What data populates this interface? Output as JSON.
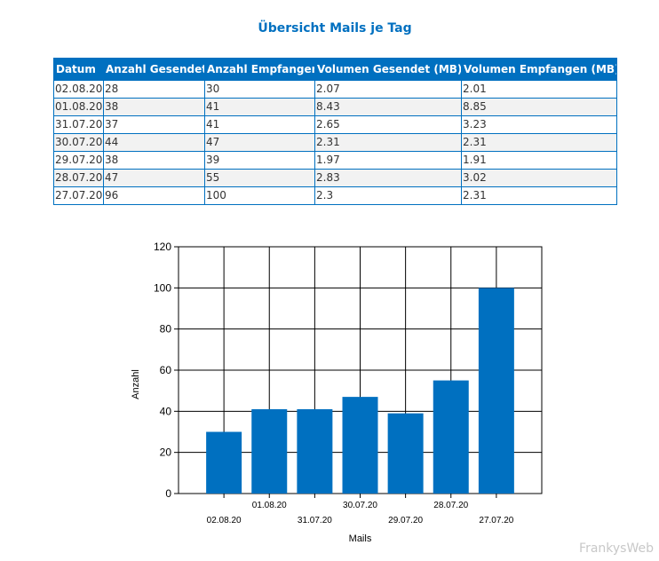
{
  "report": {
    "title": "Übersicht Mails je Tag"
  },
  "table": {
    "headers": [
      "Datum",
      "Anzahl Gesendet",
      "Anzahl Empfangen",
      "Volumen Gesendet (MB)",
      "Volumen Empfangen (MB)"
    ],
    "rows": [
      [
        "02.08.20",
        "28",
        "30",
        "2.07",
        "2.01"
      ],
      [
        "01.08.20",
        "38",
        "41",
        "8.43",
        "8.85"
      ],
      [
        "31.07.20",
        "37",
        "41",
        "2.65",
        "3.23"
      ],
      [
        "30.07.20",
        "44",
        "47",
        "2.31",
        "2.31"
      ],
      [
        "29.07.20",
        "38",
        "39",
        "1.97",
        "1.91"
      ],
      [
        "28.07.20",
        "47",
        "55",
        "2.83",
        "3.02"
      ],
      [
        "27.07.20",
        "96",
        "100",
        "2.3",
        "2.31"
      ]
    ],
    "header_color": "#0070c0",
    "border_color": "#0070c0"
  },
  "chart_data": {
    "type": "bar",
    "categories": [
      "02.08.20",
      "01.08.20",
      "31.07.20",
      "30.07.20",
      "29.07.20",
      "28.07.20",
      "27.07.20"
    ],
    "values": [
      30,
      41,
      41,
      47,
      39,
      55,
      100
    ],
    "xlabel": "Mails",
    "ylabel": "Anzahl",
    "ylim": [
      0,
      120
    ],
    "yticks": [
      0,
      20,
      40,
      60,
      80,
      100,
      120
    ],
    "grid": true,
    "bar_color": "#0070c0",
    "label_staggered": true
  },
  "watermark": "FrankysWeb"
}
